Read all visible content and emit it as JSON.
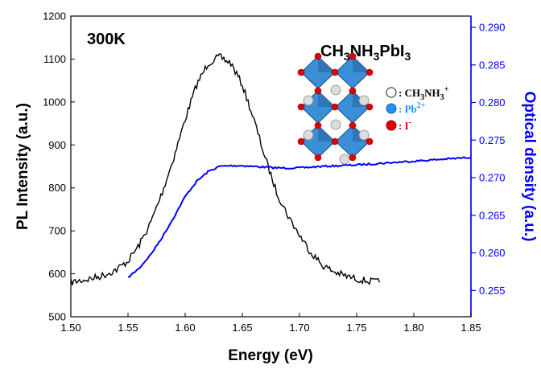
{
  "chart_data": {
    "type": "line",
    "annotation": "300K",
    "compound_label": {
      "parts": [
        "CH",
        "3",
        "NH",
        "3",
        "PbI",
        "3"
      ]
    },
    "structure_legend": [
      {
        "symbol_color": "#ffffff",
        "label": ": CH",
        "sub": "3",
        "label2": "NH",
        "sub2": "3",
        "sup": "+",
        "text_color": "#000000"
      },
      {
        "symbol_color": "#1e90ff",
        "label": ": Pb",
        "sup": "2+",
        "text_color": "#1e90ff"
      },
      {
        "symbol_color": "#e00000",
        "label": ": I",
        "sup": "-",
        "text_color": "#e00000"
      }
    ],
    "xlabel": "Energy (eV)",
    "ylabel": "PL Intensity (a.u.)",
    "y2label": "Optical density (a.u.)",
    "xlim": [
      1.5,
      1.85
    ],
    "ylim": [
      500,
      1200
    ],
    "y2lim": [
      0.2515,
      0.2915
    ],
    "x_ticks": [
      "1.50",
      "1.55",
      "1.60",
      "1.65",
      "1.70",
      "1.75",
      "1.80",
      "1.85"
    ],
    "y_ticks": [
      "500",
      "600",
      "700",
      "800",
      "900",
      "1000",
      "1100",
      "1200"
    ],
    "y2_ticks": [
      "0.255",
      "0.260",
      "0.265",
      "0.270",
      "0.275",
      "0.280",
      "0.285",
      "0.290"
    ],
    "colors": {
      "pl": "#000000",
      "od": "#0000ff"
    },
    "series": [
      {
        "axis": "left",
        "x": [
          1.5,
          1.51,
          1.52,
          1.53,
          1.54,
          1.55,
          1.56,
          1.57,
          1.58,
          1.59,
          1.6,
          1.61,
          1.62,
          1.63,
          1.64,
          1.65,
          1.66,
          1.67,
          1.68,
          1.69,
          1.7,
          1.71,
          1.72,
          1.73,
          1.74,
          1.75,
          1.76,
          1.77
        ],
        "values": [
          580,
          585,
          590,
          598,
          610,
          630,
          668,
          720,
          790,
          870,
          960,
          1040,
          1090,
          1105,
          1090,
          1040,
          960,
          870,
          790,
          735,
          690,
          650,
          620,
          605,
          595,
          588,
          583,
          580
        ]
      },
      {
        "axis": "right",
        "x": [
          1.55,
          1.56,
          1.57,
          1.58,
          1.59,
          1.6,
          1.61,
          1.62,
          1.63,
          1.64,
          1.65,
          1.66,
          1.68,
          1.7,
          1.72,
          1.75,
          1.78,
          1.8,
          1.83,
          1.85
        ],
        "values": [
          0.2567,
          0.258,
          0.2598,
          0.2621,
          0.2647,
          0.2675,
          0.2695,
          0.2708,
          0.2715,
          0.2716,
          0.2716,
          0.2715,
          0.2713,
          0.2713,
          0.2715,
          0.2717,
          0.272,
          0.2722,
          0.2725,
          0.2727
        ]
      }
    ]
  }
}
